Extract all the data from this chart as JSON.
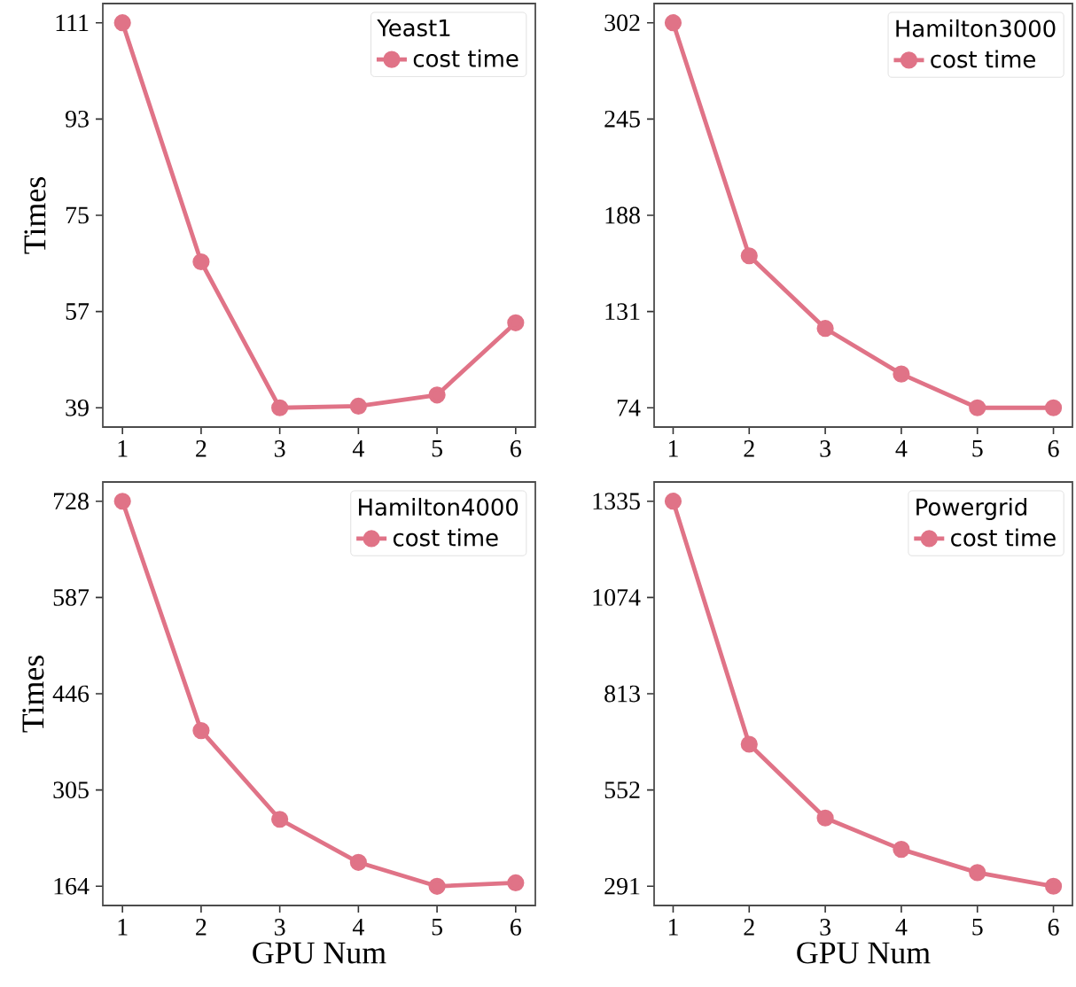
{
  "chart_data": [
    {
      "type": "line",
      "legend_title": "Yeast1",
      "ylabel": "Times",
      "x": [
        1,
        2,
        3,
        4,
        5,
        6
      ],
      "xlim": [
        0.75,
        6.25
      ],
      "xticks": [
        1,
        2,
        3,
        4,
        5,
        6
      ],
      "ylim": [
        35.4,
        114.6
      ],
      "yticks": [
        39,
        57,
        75,
        93,
        111
      ],
      "legend": "top right",
      "marker": "circle",
      "line_style": "solid",
      "series": [
        {
          "name": "cost time",
          "color": "#e07387",
          "values": [
            111,
            66.3,
            39,
            39.3,
            41.4,
            54.9
          ]
        }
      ]
    },
    {
      "type": "line",
      "legend_title": "Hamilton3000",
      "x": [
        1,
        2,
        3,
        4,
        5,
        6
      ],
      "xlim": [
        0.75,
        6.25
      ],
      "xticks": [
        1,
        2,
        3,
        4,
        5,
        6
      ],
      "ylim": [
        62.6,
        313.4
      ],
      "yticks": [
        74,
        131,
        188,
        245,
        302
      ],
      "legend": "top right",
      "marker": "circle",
      "line_style": "solid",
      "series": [
        {
          "name": "cost time",
          "color": "#e07387",
          "values": [
            302,
            164,
            121,
            94,
            74,
            74
          ]
        }
      ]
    },
    {
      "type": "line",
      "legend_title": "Hamilton4000",
      "xlabel": "GPU Num",
      "ylabel": "Times",
      "x": [
        1,
        2,
        3,
        4,
        5,
        6
      ],
      "xlim": [
        0.75,
        6.25
      ],
      "xticks": [
        1,
        2,
        3,
        4,
        5,
        6
      ],
      "ylim": [
        135.8,
        756.2
      ],
      "yticks": [
        164,
        305,
        446,
        587,
        728
      ],
      "legend": "top right",
      "marker": "circle",
      "line_style": "solid",
      "series": [
        {
          "name": "cost time",
          "color": "#e07387",
          "values": [
            728,
            392,
            262,
            199,
            164,
            169
          ]
        }
      ]
    },
    {
      "type": "line",
      "legend_title": "Powergrid",
      "xlabel": "GPU Num",
      "x": [
        1,
        2,
        3,
        4,
        5,
        6
      ],
      "xlim": [
        0.75,
        6.25
      ],
      "xticks": [
        1,
        2,
        3,
        4,
        5,
        6
      ],
      "ylim": [
        238.8,
        1387.2
      ],
      "yticks": [
        291,
        552,
        813,
        1074,
        1335
      ],
      "legend": "top right",
      "marker": "circle",
      "line_style": "solid",
      "series": [
        {
          "name": "cost time",
          "color": "#e07387",
          "values": [
            1335,
            676,
            476,
            391,
            328,
            291
          ]
        }
      ]
    }
  ]
}
